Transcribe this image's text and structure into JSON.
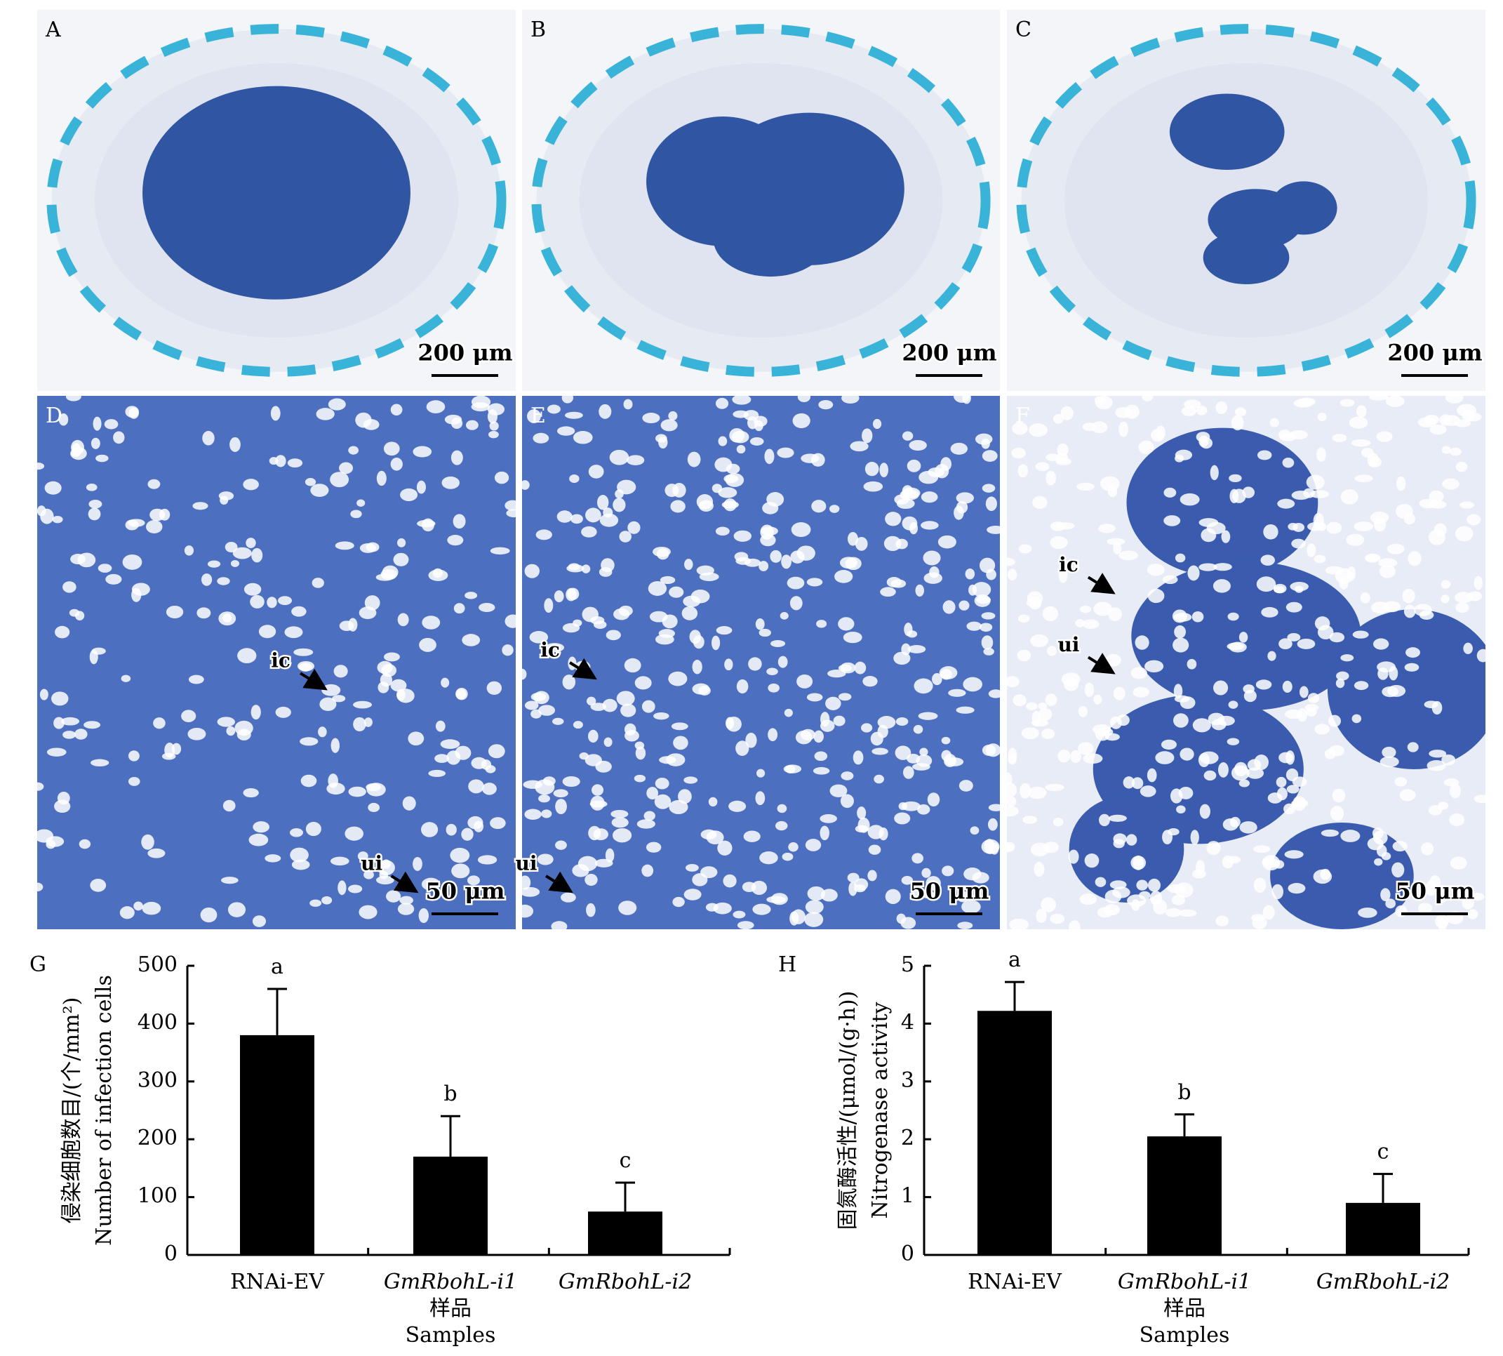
{
  "panels": [
    {
      "label": "A",
      "scale": "200 μm"
    },
    {
      "label": "B",
      "scale": "200 μm"
    },
    {
      "label": "C",
      "scale": "200 μm"
    },
    {
      "label": "D",
      "scale": "50 μm",
      "arrows": [
        "ic",
        "ui"
      ]
    },
    {
      "label": "E",
      "scale": "50 μm",
      "arrows": [
        "ic",
        "ui"
      ]
    },
    {
      "label": "F",
      "scale": "50 μm",
      "arrows": [
        "ic",
        "ui"
      ]
    }
  ],
  "chart_data": [
    {
      "type": "bar",
      "panel": "G",
      "y_label": [
        "侵染细胞数目/(个/mm²)",
        "Number of infection cells"
      ],
      "x_label": [
        "样品",
        "Samples"
      ],
      "categories": [
        "RNAi-EV",
        "GmRbohL-i1",
        "GmRbohL-i2"
      ],
      "values": [
        380,
        170,
        75
      ],
      "errors": [
        80,
        70,
        50
      ],
      "annotations": [
        "a",
        "b",
        "c"
      ],
      "color": "#000000",
      "ylim": [
        0,
        500
      ],
      "yticks": [
        0,
        100,
        200,
        300,
        400,
        500
      ]
    },
    {
      "type": "bar",
      "panel": "H",
      "y_label": [
        "固氮酶活性/(μmol/(g·h))",
        "Nitrogenase activity"
      ],
      "x_label": [
        "样品",
        "Samples"
      ],
      "categories": [
        "RNAi-EV",
        "GmRbohL-i1",
        "GmRbohL-i2"
      ],
      "values": [
        4.22,
        2.05,
        0.9
      ],
      "errors": [
        0.5,
        0.38,
        0.5
      ],
      "annotations": [
        "a",
        "b",
        "c"
      ],
      "color": "#000000",
      "ylim": [
        0,
        5
      ],
      "yticks": [
        0,
        1,
        2,
        3,
        4,
        5
      ]
    }
  ]
}
